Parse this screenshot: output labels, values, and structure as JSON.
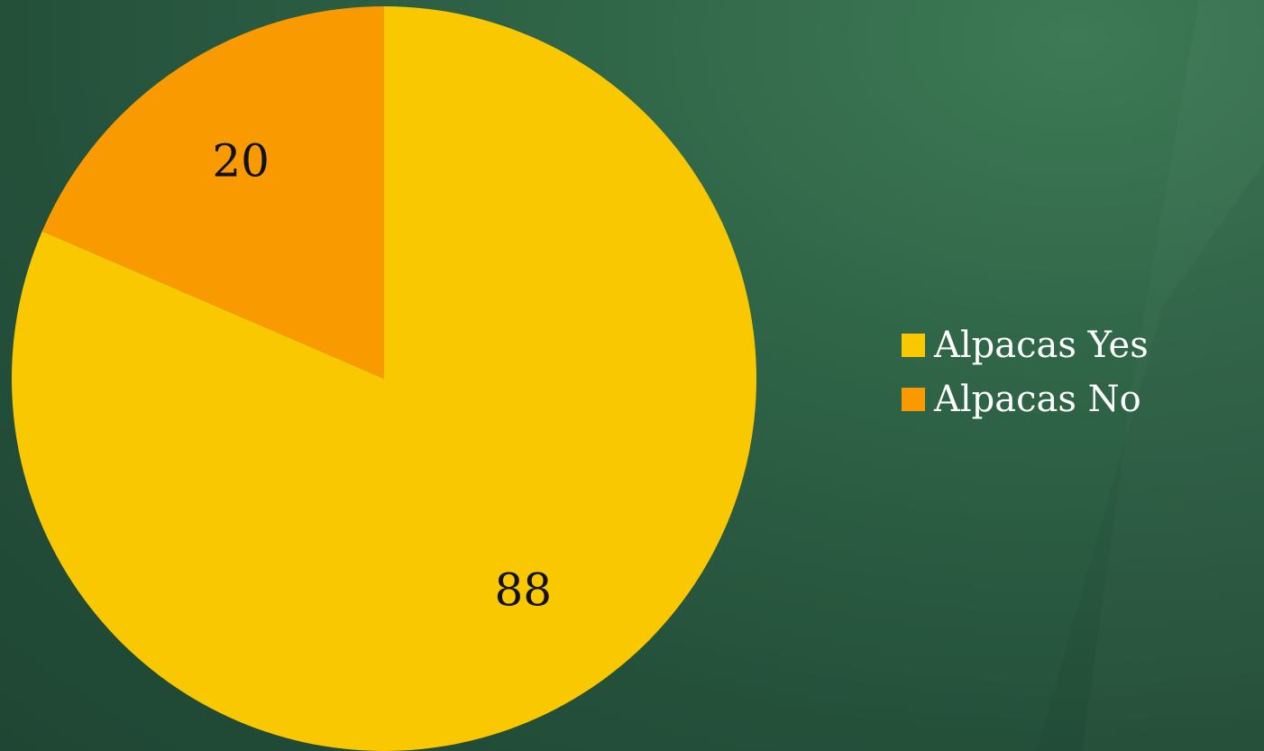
{
  "chart_data": {
    "type": "pie",
    "categories": [
      "Alpacas Yes",
      "Alpacas No"
    ],
    "values": [
      88,
      20
    ],
    "data_labels": [
      "88",
      "20"
    ],
    "colors": [
      "#fac800",
      "#f99a00"
    ],
    "start_angle_deg": 0,
    "direction": "clockwise",
    "legend_position": "right",
    "title": ""
  },
  "theme": {
    "background": "#2a5a40",
    "legend_text_color": "#ffffff",
    "data_label_color": "#111111"
  }
}
